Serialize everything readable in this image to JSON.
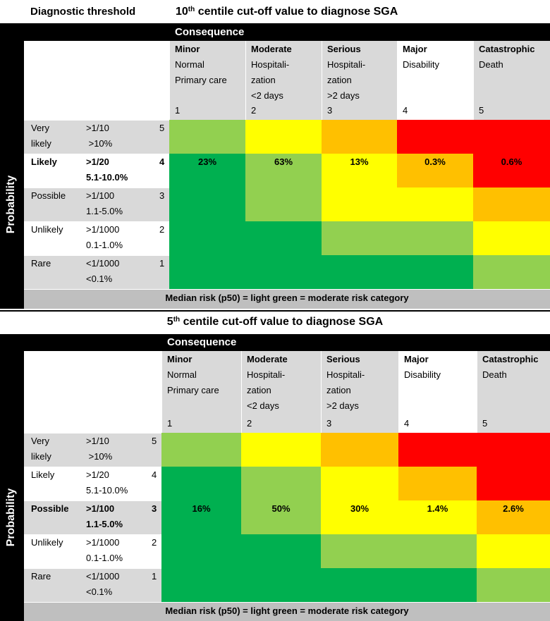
{
  "colors": {
    "dark_green": "#00b050",
    "light_green": "#92d050",
    "yellow": "#ffff00",
    "orange": "#ffc000",
    "red": "#ff0000",
    "grey": "#d9d9d9",
    "dark_grey": "#bfbfbf",
    "black": "#000000"
  },
  "header": {
    "col1": "Diagnostic threshold",
    "title_pre": "10",
    "title_sup": "th",
    "title_post": " centile cut-off value to diagnose SGA"
  },
  "section2": {
    "title_pre": "5",
    "title_sup": "th",
    "title_post": " centile cut-off value to diagnose SGA"
  },
  "consequence_label": "Consequence",
  "probability_label": "Probability",
  "consequences": [
    {
      "title": "Minor",
      "lines": [
        "Normal",
        "Primary care"
      ],
      "num": "1"
    },
    {
      "title": "Moderate",
      "lines": [
        "Hospitali-",
        "zation",
        "<2 days"
      ],
      "num": "2"
    },
    {
      "title": "Serious",
      "lines": [
        "Hospitali-",
        "zation",
        ">2 days"
      ],
      "num": "3"
    },
    {
      "title": "Major",
      "lines": [
        "Disability"
      ],
      "num": "4"
    },
    {
      "title": "Catastrophic",
      "lines": [
        "Death"
      ],
      "num": "5"
    }
  ],
  "probabilities": [
    {
      "label": [
        "Very",
        "likely"
      ],
      "freq": [
        ">1/10",
        " >10%"
      ],
      "num": "5"
    },
    {
      "label": [
        "Likely"
      ],
      "freq": [
        ">1/20",
        "5.1-10.0%"
      ],
      "num": "4"
    },
    {
      "label": [
        "Possible"
      ],
      "freq": [
        ">1/100",
        "1.1-5.0%"
      ],
      "num": "3"
    },
    {
      "label": [
        "Unlikely"
      ],
      "freq": [
        ">1/1000",
        "0.1-1.0%"
      ],
      "num": "2"
    },
    {
      "label": [
        "Rare"
      ],
      "freq": [
        "<1/1000",
        "<0.1%"
      ],
      "num": "1"
    }
  ],
  "matrix_colors": [
    [
      "light_green",
      "yellow",
      "orange",
      "red",
      "red"
    ],
    [
      "dark_green",
      "light_green",
      "yellow",
      "orange",
      "red"
    ],
    [
      "dark_green",
      "light_green",
      "yellow",
      "yellow",
      "orange"
    ],
    [
      "dark_green",
      "dark_green",
      "light_green",
      "light_green",
      "yellow"
    ],
    [
      "dark_green",
      "dark_green",
      "dark_green",
      "dark_green",
      "light_green"
    ]
  ],
  "table1": {
    "highlight_row": 1,
    "values": [
      "23%",
      "63%",
      "13%",
      "0.3%",
      "0.6%"
    ],
    "footer": "Median risk (p50) = light green = moderate risk category"
  },
  "table2": {
    "highlight_row": 2,
    "values": [
      "16%",
      "50%",
      "30%",
      "1.4%",
      "2.6%"
    ],
    "footer": "Median risk (p50) = light green = moderate risk category"
  }
}
